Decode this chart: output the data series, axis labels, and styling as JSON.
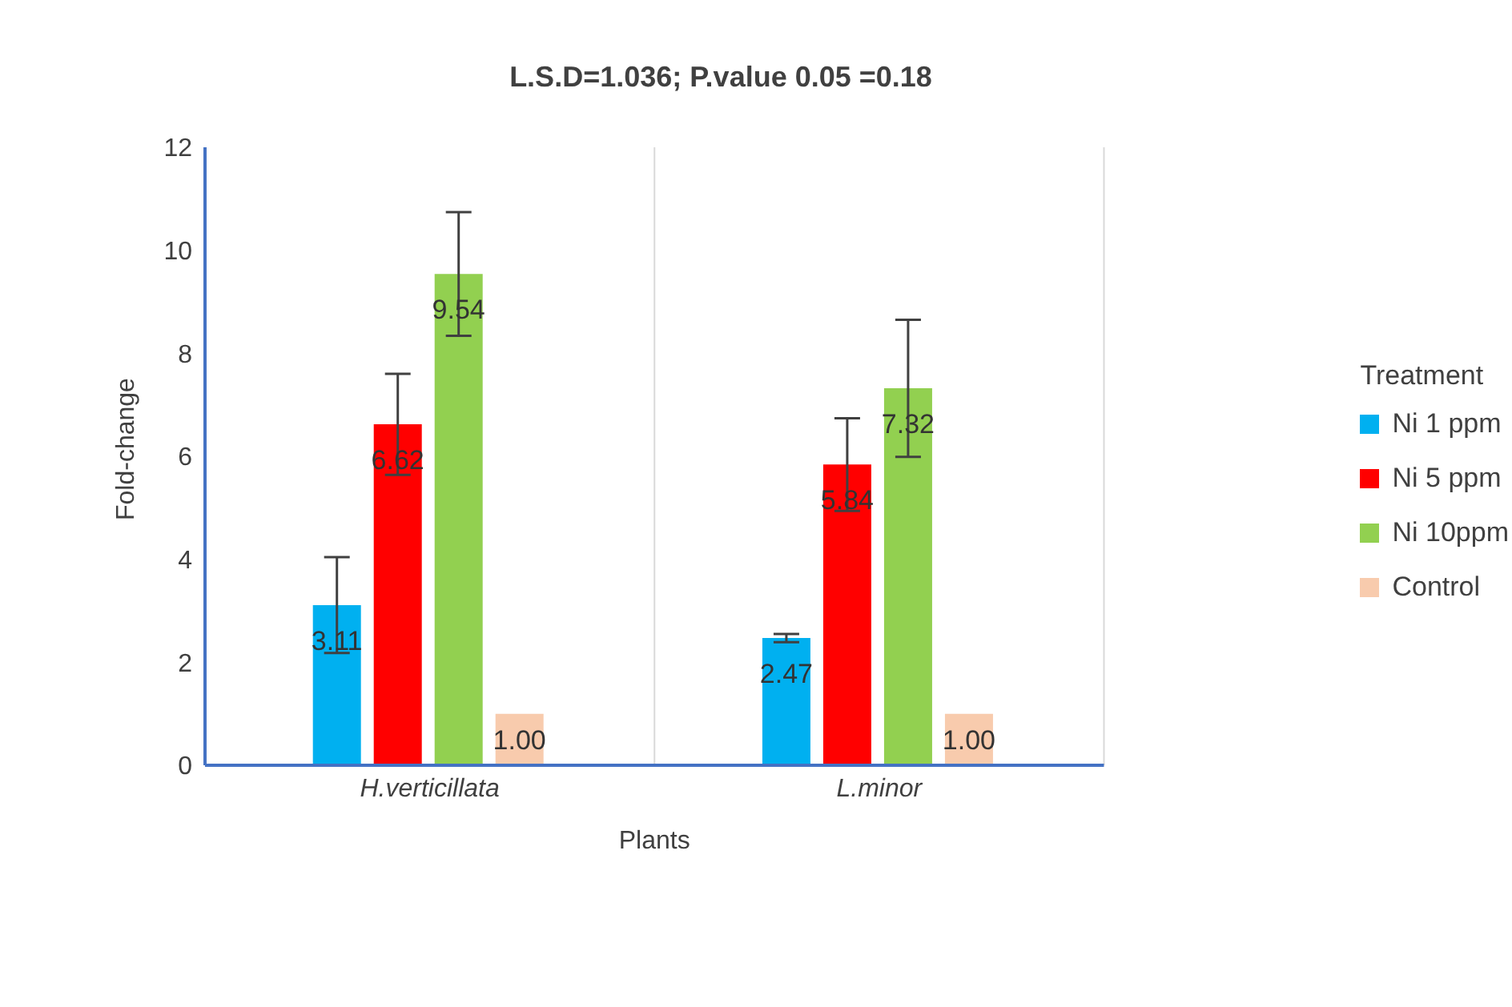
{
  "chart_data": {
    "type": "bar",
    "title": "L.S.D=1.036; P.value 0.05 =0.18",
    "xlabel": "Plants",
    "ylabel": "Fold-change",
    "legend_title": "Treatment",
    "categories": [
      "H.verticillata",
      "L.minor"
    ],
    "series": [
      {
        "name": "Ni 1 ppm",
        "color": "#00b0f0",
        "values": [
          3.11,
          2.47
        ],
        "errors": [
          0.93,
          0.08
        ],
        "value_labels": [
          "3.11",
          "2.47"
        ]
      },
      {
        "name": "Ni 5 ppm",
        "color": "#ff0000",
        "values": [
          6.62,
          5.84
        ],
        "errors": [
          0.98,
          0.9
        ],
        "value_labels": [
          "6.62",
          "5.84"
        ]
      },
      {
        "name": "Ni 10ppm",
        "color": "#92d050",
        "values": [
          9.54,
          7.32
        ],
        "errors": [
          1.2,
          1.33
        ],
        "value_labels": [
          "9.54",
          "7.32"
        ]
      },
      {
        "name": "Control",
        "color": "#f8cbad",
        "values": [
          1.0,
          1.0
        ],
        "value_labels": [
          "1.00",
          "1.00"
        ]
      }
    ],
    "ylim": [
      0,
      12
    ],
    "yticks": [
      0,
      2,
      4,
      6,
      8,
      10,
      12
    ],
    "grid": "x",
    "legend": "right"
  }
}
